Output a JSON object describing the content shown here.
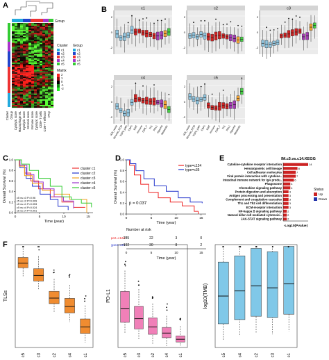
{
  "panel_labels": [
    "A",
    "B",
    "C",
    "D",
    "E",
    "F"
  ],
  "panelA": {
    "group_label": "Group",
    "legend_title_cluster": "Cluster",
    "legend_title_group": "Group",
    "clusters": [
      {
        "name": "c1",
        "color": "#22aadd"
      },
      {
        "name": "c2",
        "color": "#2244cc"
      },
      {
        "name": "c3",
        "color": "#ee3333"
      },
      {
        "name": "c4",
        "color": "#aa33cc"
      },
      {
        "name": "c5",
        "color": "#33cc33"
      }
    ],
    "matrix_title": "Matrix",
    "matrix_ticks": [
      "2",
      "1",
      "0",
      "-1",
      "-2"
    ],
    "row_labels": [
      "Cluster",
      "Group",
      "Cytolytic score",
      "Macrophage M1",
      "Cytolytic score",
      "Stromal score",
      "Immune score",
      "Cytolytic score",
      "CD8+ T cells",
      "CD8+ T effector",
      "IFNγ"
    ]
  },
  "panelB": {
    "facets": [
      "c1",
      "c2",
      "c3",
      "c4",
      "c5"
    ],
    "colors": {
      "blue": "#8fc4de",
      "red": "#cc2222",
      "purple": "#a33bb3",
      "orange": "#f0a030",
      "green": "#44cc44"
    },
    "x_labels": [
      "ICB_resist",
      "Stromal_ECM",
      "TGFb_path",
      "CAFs",
      "EMT",
      "Immune",
      "CD8_T",
      "Th1",
      "PDL1",
      "Hypoxia",
      "Metabolic"
    ]
  },
  "panelC": {
    "ylabel": "Overall Survival (%)",
    "xlabel": "Time (year)",
    "x_ticks": [
      "0",
      "5",
      "10",
      "15"
    ],
    "y_ticks": [
      "0.0",
      "0.2",
      "0.4",
      "0.6",
      "0.8",
      "1.0"
    ],
    "legend": [
      {
        "label": "cluster c1",
        "color": "#ee3333"
      },
      {
        "label": "cluster c2",
        "color": "#2233cc"
      },
      {
        "label": "cluster c3",
        "color": "#f0a020"
      },
      {
        "label": "cluster c4",
        "color": "#9933cc"
      },
      {
        "label": "cluster c5",
        "color": "#33cc33"
      }
    ],
    "stats": [
      "c5 vs c3 P=0.96",
      "c5 vs c2 P=0.009",
      "c5 vs c1 P=0.053",
      "c5 vs c4 P=0.024",
      "c5 vs c4 P=0.001"
    ]
  },
  "panelD": {
    "ylabel": "Overall Survival (%)",
    "xlabel": "Time (year)",
    "x_ticks": [
      "0",
      "5",
      "10",
      "15"
    ],
    "y_ticks": [
      "0.0",
      "0.2",
      "0.4",
      "0.6",
      "0.8",
      "1.0"
    ],
    "legend": [
      {
        "label": "type=c124",
        "color": "#ee2222"
      },
      {
        "label": "type=c35",
        "color": "#2233cc"
      }
    ],
    "pvalue": "p = 0.037",
    "risk_title": "Number at risk",
    "risk_rows": [
      {
        "label": "type2=c124",
        "color": "#ee2222",
        "values": [
          "285",
          "22",
          "3",
          "0"
        ]
      },
      {
        "label": "type2=c35",
        "color": "#2233cc",
        "values": [
          "192",
          "30",
          "8",
          "2"
        ]
      }
    ],
    "risk_xlabel": "Time (year)"
  },
  "panelE": {
    "title": "IM.c5.vs.c14.KEGG",
    "xlabel": "-Log10(Pvalue)",
    "legend_title": "Status",
    "legend": [
      {
        "label": "Up",
        "color": "#cc2222"
      },
      {
        "label": "Down",
        "color": "#2233aa"
      }
    ],
    "chart_data": {
      "type": "bar",
      "categories": [
        "Cytokine-cytokine receptor interaction",
        "Hematopoietic cell lineage",
        "Cell adhesion molecules",
        "Viral protein interaction with cytokine..",
        "Intestinal immune network for IgA produ..",
        "Phagosome",
        "Chemokine signaling pathway",
        "Protein digestion and absorption",
        "Antigen processing and presentation",
        "Complement and coagulation cascades",
        "Th1 and Th2 cell differentiation",
        "ECM-receptor interaction",
        "NF-kappa B signaling pathway",
        "Natural killer cell mediated cytotoxici..",
        "JAK-STAT signaling pathway"
      ],
      "values": [
        14,
        8,
        7,
        7,
        6,
        4,
        4,
        3,
        3,
        3,
        3,
        3,
        2,
        2,
        2
      ],
      "value_labels": [
        "14",
        "8",
        "7",
        "7",
        "6",
        "4",
        "4",
        "3",
        "3",
        "3",
        "3",
        "3",
        "2",
        "2",
        "2"
      ]
    }
  },
  "panelF": {
    "plots": [
      {
        "ylabel": "TLSs",
        "color": "#f08c30",
        "categories": [
          "c5",
          "c3",
          "c2",
          "c4",
          "c1"
        ]
      },
      {
        "ylabel": "PD-L1",
        "color": "#f080b8",
        "categories": [
          "c5",
          "c3",
          "c2",
          "c4",
          "c1"
        ]
      },
      {
        "ylabel": "log10(TMB)",
        "color": "#80c8e8",
        "categories": [
          "c5",
          "c4",
          "c2",
          "c3",
          "c1"
        ]
      }
    ]
  }
}
